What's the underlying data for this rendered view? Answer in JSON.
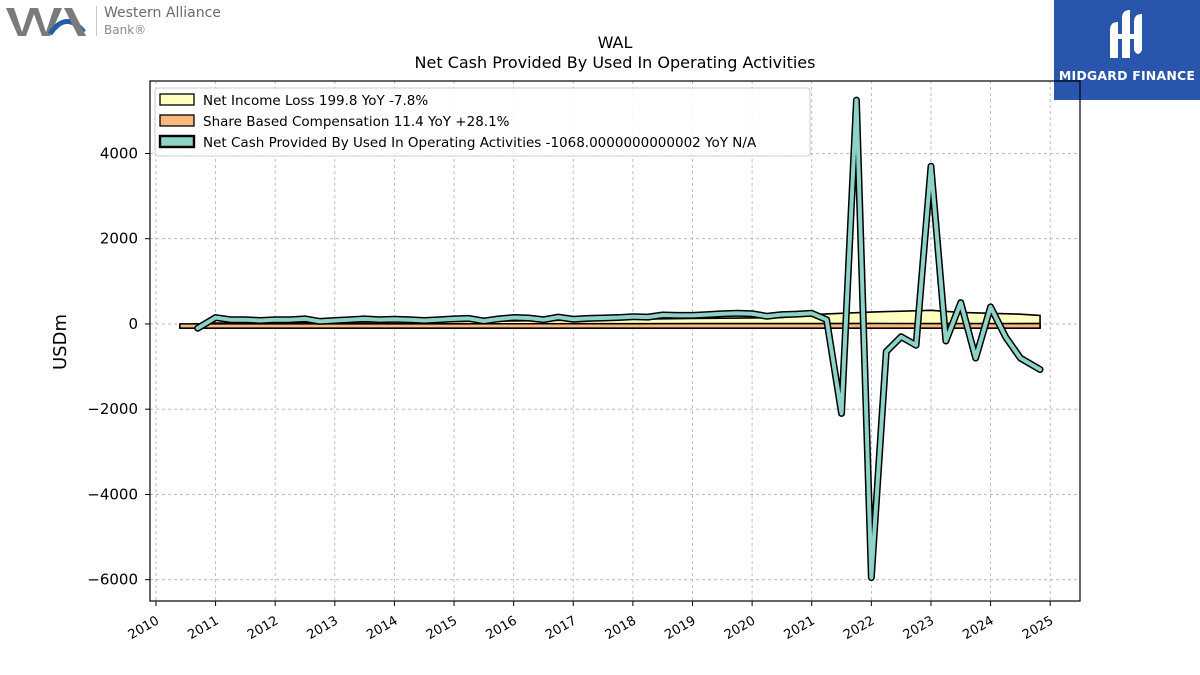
{
  "header": {
    "company_logo": {
      "line1": "Western Alliance",
      "line2": "Bank®"
    },
    "brand_logo": {
      "text": "MIDGARD FINANCE",
      "color": "#2a55ad"
    }
  },
  "chart_data": {
    "type": "line",
    "title": "WAL",
    "subtitle": "Net Cash Provided By Used In Operating Activities",
    "ylabel": "USDm",
    "xlabel": "",
    "xlim": [
      2009.9,
      2025.5
    ],
    "ylim": [
      -6500,
      5700
    ],
    "xticks": [
      2010,
      2011,
      2012,
      2013,
      2014,
      2015,
      2016,
      2017,
      2018,
      2019,
      2020,
      2021,
      2022,
      2023,
      2024,
      2025
    ],
    "yticks": [
      -6000,
      -4000,
      -2000,
      0,
      2000,
      4000
    ],
    "grid": true,
    "legend_position": "top-left",
    "series": [
      {
        "name": "Net Income Loss  199.8 YoY -7.8%",
        "kind": "area",
        "color": "#ffffc0",
        "x": [
          2010.4,
          2010.7,
          2011.0,
          2011.5,
          2012.0,
          2012.5,
          2013.0,
          2013.5,
          2014.0,
          2014.5,
          2015.0,
          2015.5,
          2016.0,
          2016.5,
          2017.0,
          2017.5,
          2018.0,
          2018.5,
          2019.0,
          2019.5,
          2020.0,
          2020.5,
          2021.0,
          2021.5,
          2022.0,
          2022.5,
          2023.0,
          2023.5,
          2024.0,
          2024.5,
          2024.83
        ],
        "values": [
          -20,
          5,
          20,
          25,
          30,
          35,
          40,
          45,
          50,
          55,
          60,
          65,
          70,
          80,
          90,
          100,
          110,
          120,
          130,
          135,
          140,
          150,
          220,
          250,
          280,
          300,
          320,
          270,
          250,
          230,
          200
        ]
      },
      {
        "name": "Share Based Compensation  11.4 YoY +28.1%",
        "kind": "area",
        "color": "#fdb97d",
        "x": [
          2010.4,
          2011.0,
          2012.0,
          2013.0,
          2014.0,
          2015.0,
          2016.0,
          2017.0,
          2018.0,
          2019.0,
          2020.0,
          2021.0,
          2022.0,
          2023.0,
          2024.0,
          2024.83
        ],
        "values": [
          2,
          2,
          2,
          3,
          3,
          4,
          5,
          6,
          7,
          8,
          9,
          10,
          11,
          10,
          9,
          11
        ]
      },
      {
        "name": "Net Cash Provided By Used In Operating Activities  -1068.0000000000002 YoY N/A",
        "kind": "line",
        "color": "#8dd3c7",
        "x": [
          2010.7,
          2011.0,
          2011.25,
          2011.5,
          2011.75,
          2012.0,
          2012.25,
          2012.5,
          2012.75,
          2013.0,
          2013.25,
          2013.5,
          2013.75,
          2014.0,
          2014.25,
          2014.5,
          2014.75,
          2015.0,
          2015.25,
          2015.5,
          2015.75,
          2016.0,
          2016.25,
          2016.5,
          2016.75,
          2017.0,
          2017.25,
          2017.5,
          2017.75,
          2018.0,
          2018.25,
          2018.5,
          2018.75,
          2019.0,
          2019.25,
          2019.5,
          2019.75,
          2020.0,
          2020.25,
          2020.5,
          2020.75,
          2021.0,
          2021.25,
          2021.5,
          2021.75,
          2022.0,
          2022.25,
          2022.5,
          2022.75,
          2023.0,
          2023.25,
          2023.5,
          2023.75,
          2024.0,
          2024.25,
          2024.5,
          2024.83
        ],
        "values": [
          -100,
          150,
          100,
          100,
          80,
          100,
          100,
          120,
          60,
          80,
          100,
          120,
          100,
          110,
          100,
          80,
          100,
          120,
          130,
          70,
          120,
          150,
          140,
          100,
          160,
          110,
          130,
          140,
          150,
          170,
          160,
          210,
          200,
          200,
          220,
          240,
          250,
          240,
          180,
          220,
          230,
          250,
          100,
          -2100,
          5250,
          -5950,
          -650,
          -300,
          -500,
          3700,
          -400,
          500,
          -800,
          400,
          -300,
          -800,
          -1068
        ]
      }
    ]
  }
}
